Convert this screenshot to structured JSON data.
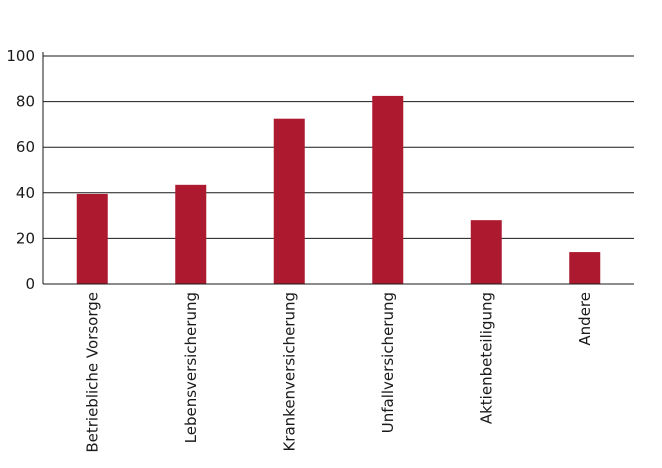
{
  "chart_data": {
    "type": "bar",
    "categories": [
      "Betriebliche Vorsorge",
      "Lebensversicherung",
      "Krankenversicherung",
      "Unfallversicherung",
      "Aktienbeteiligung",
      "Andere"
    ],
    "values": [
      39.5,
      43.5,
      72.5,
      82.5,
      28,
      14
    ],
    "title": "",
    "xlabel": "",
    "ylabel": "",
    "ylim": [
      0,
      100
    ],
    "yticks": [
      0,
      20,
      40,
      60,
      80,
      100
    ],
    "grid": true,
    "legend": "none",
    "bar_color": "#ad1a30"
  }
}
